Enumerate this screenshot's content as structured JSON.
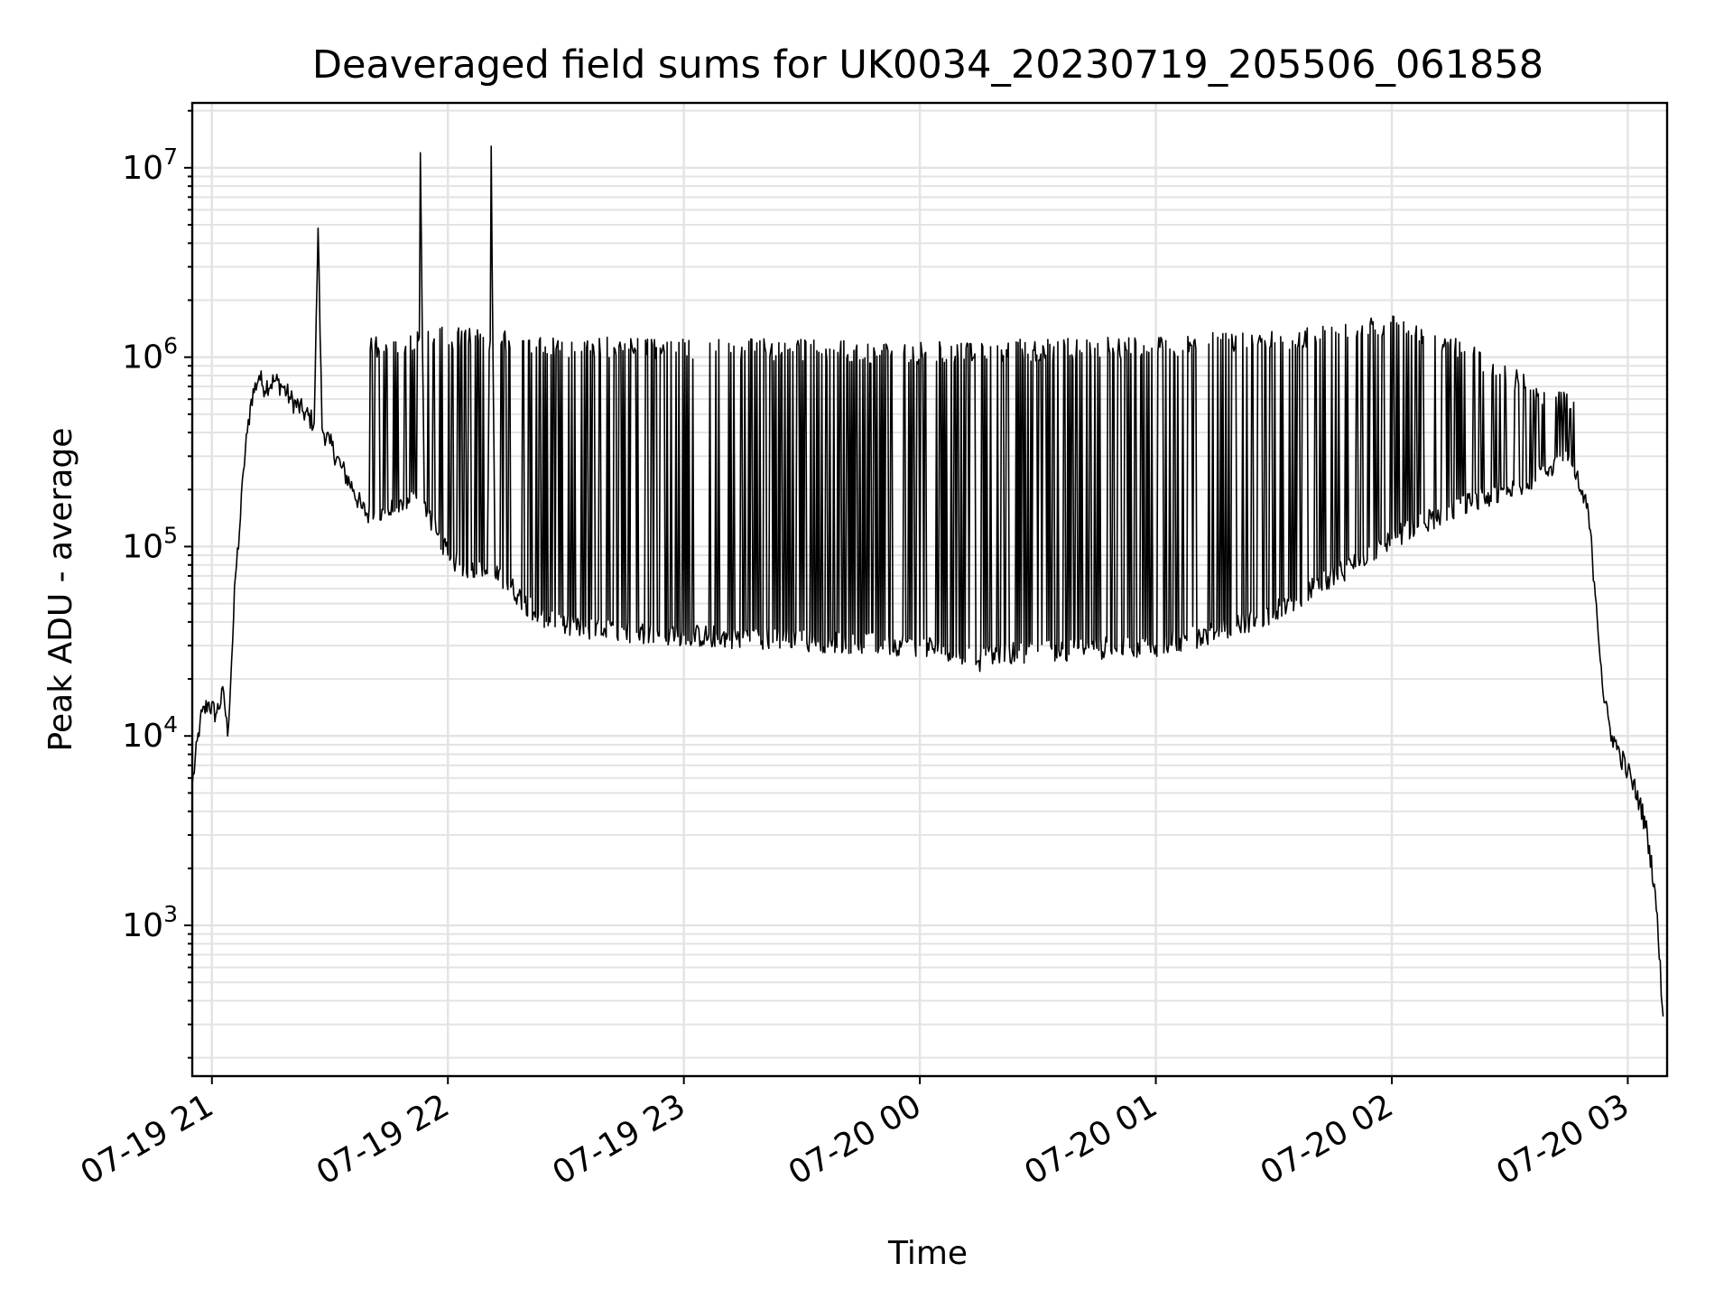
{
  "chart_data": {
    "type": "line",
    "title": "Deaveraged field sums for UK0034_20230719_205506_061858",
    "xlabel": "Time",
    "ylabel": "Peak ADU - average",
    "xscale": "time",
    "yscale": "log",
    "grid": true,
    "legend": "none",
    "xlim": [
      "2023-07-19 20:55",
      "2023-07-20 03:10"
    ],
    "ylim": [
      160,
      22000000
    ],
    "x_ticks": [
      {
        "value": "2023-07-19 21:00",
        "label": "07-19 21"
      },
      {
        "value": "2023-07-19 22:00",
        "label": "07-19 22"
      },
      {
        "value": "2023-07-19 23:00",
        "label": "07-19 23"
      },
      {
        "value": "2023-07-20 00:00",
        "label": "07-20 00"
      },
      {
        "value": "2023-07-20 01:00",
        "label": "07-20 01"
      },
      {
        "value": "2023-07-20 02:00",
        "label": "07-20 02"
      },
      {
        "value": "2023-07-20 03:00",
        "label": "07-20 03"
      }
    ],
    "y_ticks": [
      {
        "value": 1000,
        "base": "10",
        "exp": "3"
      },
      {
        "value": 10000,
        "base": "10",
        "exp": "4"
      },
      {
        "value": 100000,
        "base": "10",
        "exp": "5"
      },
      {
        "value": 1000000,
        "base": "10",
        "exp": "6"
      },
      {
        "value": 10000000,
        "base": "10",
        "exp": "7"
      }
    ],
    "series": [
      {
        "color": "#000000",
        "points": [
          [
            "2023-07-19 20:55",
            5500
          ],
          [
            "2023-07-19 20:57",
            12000
          ],
          [
            "2023-07-19 20:59",
            15000
          ],
          [
            "2023-07-19 21:01",
            13000
          ],
          [
            "2023-07-19 21:03",
            17000
          ],
          [
            "2023-07-19 21:04",
            10000
          ],
          [
            "2023-07-19 21:05",
            25000
          ],
          [
            "2023-07-19 21:06",
            70000
          ],
          [
            "2023-07-19 21:07",
            120000
          ],
          [
            "2023-07-19 21:08",
            250000
          ],
          [
            "2023-07-19 21:09",
            400000
          ],
          [
            "2023-07-19 21:10",
            600000
          ],
          [
            "2023-07-19 21:12",
            800000
          ],
          [
            "2023-07-19 21:13",
            700000
          ],
          [
            "2023-07-19 21:16",
            750000
          ],
          [
            "2023-07-19 21:18",
            700000
          ],
          [
            "2023-07-19 21:20",
            600000
          ],
          [
            "2023-07-19 21:23",
            520000
          ],
          [
            "2023-07-19 21:26",
            450000
          ],
          [
            "2023-07-19 21:27",
            4800000
          ],
          [
            "2023-07-19 21:28",
            420000
          ],
          [
            "2023-07-19 21:30",
            350000
          ],
          [
            "2023-07-19 21:33",
            260000
          ],
          [
            "2023-07-19 21:36",
            200000
          ],
          [
            "2023-07-19 21:38",
            160000
          ],
          [
            "2023-07-19 21:41",
            140000
          ],
          [
            "2023-07-19 21:44",
            150000
          ],
          [
            "2023-07-19 21:47",
            160000
          ],
          [
            "2023-07-19 21:50",
            170000
          ],
          [
            "2023-07-19 21:52",
            180000
          ],
          [
            "2023-07-19 21:53",
            12000000
          ],
          [
            "2023-07-19 21:54",
            170000
          ],
          [
            "2023-07-19 21:57",
            120000
          ],
          [
            "2023-07-19 22:00",
            90000
          ],
          [
            "2023-07-19 22:03",
            80000
          ],
          [
            "2023-07-19 22:06",
            75000
          ],
          [
            "2023-07-19 22:10",
            72000
          ],
          [
            "2023-07-19 22:11",
            13000000
          ],
          [
            "2023-07-19 22:12",
            70000
          ],
          [
            "2023-07-19 22:15",
            65000
          ],
          [
            "2023-07-19 22:18",
            55000
          ],
          [
            "2023-07-19 22:22",
            45000
          ],
          [
            "2023-07-19 22:26",
            40000
          ],
          [
            "2023-07-19 22:30",
            38000
          ],
          [
            "2023-07-19 22:40",
            36000
          ],
          [
            "2023-07-19 22:50",
            35000
          ],
          [
            "2023-07-19 23:00",
            34000
          ],
          [
            "2023-07-19 23:15",
            33000
          ],
          [
            "2023-07-19 23:30",
            32000
          ],
          [
            "2023-07-19 23:45",
            31000
          ],
          [
            "2023-07-20 00:00",
            30000
          ],
          [
            "2023-07-20 00:10",
            28000
          ],
          [
            "2023-07-20 00:15",
            25000
          ],
          [
            "2023-07-20 00:20",
            27000
          ],
          [
            "2023-07-20 00:30",
            28000
          ],
          [
            "2023-07-20 00:45",
            29000
          ],
          [
            "2023-07-20 01:00",
            30000
          ],
          [
            "2023-07-20 01:15",
            35000
          ],
          [
            "2023-07-20 01:30",
            45000
          ],
          [
            "2023-07-20 01:40",
            60000
          ],
          [
            "2023-07-20 01:50",
            80000
          ],
          [
            "2023-07-20 02:00",
            110000
          ],
          [
            "2023-07-20 02:10",
            140000
          ],
          [
            "2023-07-20 02:20",
            170000
          ],
          [
            "2023-07-20 02:30",
            200000
          ],
          [
            "2023-07-20 02:40",
            260000
          ],
          [
            "2023-07-20 02:45",
            300000
          ],
          [
            "2023-07-20 02:50",
            150000
          ],
          [
            "2023-07-20 02:52",
            50000
          ],
          [
            "2023-07-20 02:54",
            15000
          ],
          [
            "2023-07-20 02:56",
            10000
          ],
          [
            "2023-07-20 02:58",
            8000
          ],
          [
            "2023-07-20 03:00",
            6500
          ],
          [
            "2023-07-20 03:03",
            4500
          ],
          [
            "2023-07-20 03:05",
            3000
          ],
          [
            "2023-07-20 03:07",
            1500
          ],
          [
            "2023-07-20 03:09",
            330
          ]
        ],
        "upper_envelope": [
          [
            "2023-07-19 21:40",
            1300000
          ],
          [
            "2023-07-19 22:00",
            1450000
          ],
          [
            "2023-07-19 22:30",
            1300000
          ],
          [
            "2023-07-19 23:00",
            1250000
          ],
          [
            "2023-07-19 23:30",
            1250000
          ],
          [
            "2023-07-20 00:00",
            1200000
          ],
          [
            "2023-07-20 00:30",
            1250000
          ],
          [
            "2023-07-20 01:00",
            1300000
          ],
          [
            "2023-07-20 01:30",
            1400000
          ],
          [
            "2023-07-20 01:50",
            1600000
          ],
          [
            "2023-07-20 02:00",
            1700000
          ],
          [
            "2023-07-20 02:10",
            1500000
          ],
          [
            "2023-07-20 02:20",
            1200000
          ],
          [
            "2023-07-20 02:30",
            900000
          ],
          [
            "2023-07-20 02:40",
            700000
          ],
          [
            "2023-07-20 02:48",
            650000
          ]
        ]
      }
    ]
  }
}
